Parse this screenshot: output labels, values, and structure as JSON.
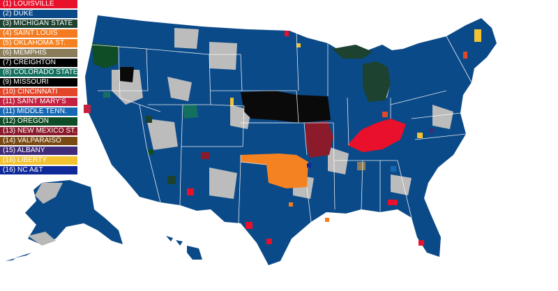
{
  "legend": [
    {
      "label": "(1) LOUISVILLE",
      "color": "#e8102a"
    },
    {
      "label": "(2) DUKE",
      "color": "#0b4a88"
    },
    {
      "label": "(3) MICHIGAN STATE",
      "color": "#1d4230"
    },
    {
      "label": "(4) SAINT LOUIS",
      "color": "#f47b20"
    },
    {
      "label": "(5) OKLAHOMA ST.",
      "color": "#f58220"
    },
    {
      "label": "(6) MEMPHIS",
      "color": "#8b7d5a"
    },
    {
      "label": "(7) CREIGHTON",
      "color": "#000000"
    },
    {
      "label": "(8) COLORADO STATE",
      "color": "#13705f"
    },
    {
      "label": "(9) MISSOURI",
      "color": "#000000"
    },
    {
      "label": "(10) CINCINNATI",
      "color": "#e2472a"
    },
    {
      "label": "(11) SAINT MARY'S",
      "color": "#c3213f"
    },
    {
      "label": "(11) MIDDLE TENN.",
      "color": "#1769b3"
    },
    {
      "label": "(12) OREGON",
      "color": "#0f4d26"
    },
    {
      "label": "(13) NEW MEXICO ST.",
      "color": "#8b1a2b"
    },
    {
      "label": "(14) VALPARAISO",
      "color": "#7a4a12"
    },
    {
      "label": "(15) ALBANY",
      "color": "#3f2b7a"
    },
    {
      "label": "(16) LIBERTY",
      "color": "#f2c230"
    },
    {
      "label": "(16) NC A&T",
      "color": "#0e2a9a"
    }
  ]
}
